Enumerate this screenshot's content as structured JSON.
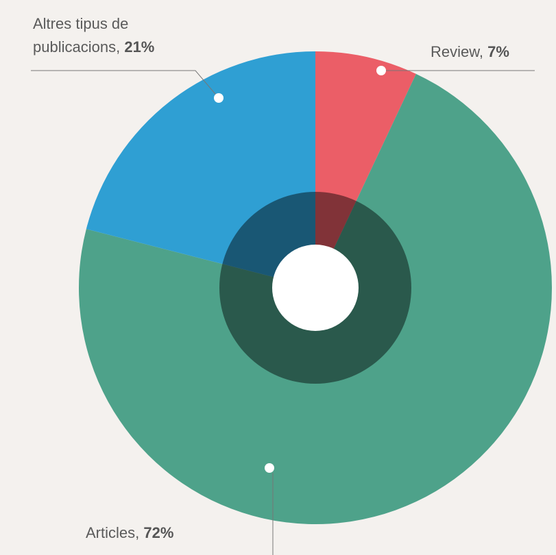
{
  "chart_data": {
    "type": "pie",
    "categories": [
      "Review",
      "Articles",
      "Altres tipus de publicacions"
    ],
    "values": [
      7,
      72,
      21
    ],
    "value_labels": [
      "7%",
      "72%",
      "21%"
    ],
    "separator": ",",
    "colors": [
      "#eb5e67",
      "#4ea28a",
      "#2f9fd3"
    ]
  }
}
